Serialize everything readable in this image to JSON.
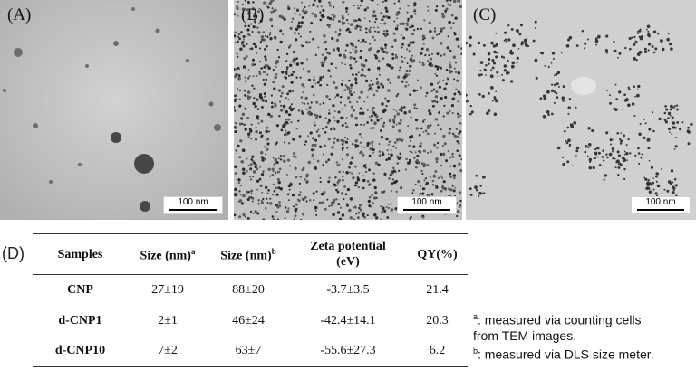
{
  "panels": [
    {
      "label": "(A)",
      "scale_bar": "100 nm"
    },
    {
      "label": "(B)",
      "scale_bar": "100 nm"
    },
    {
      "label": "(C)",
      "scale_bar": "100 nm"
    }
  ],
  "table_label": "(D)",
  "table": {
    "headers": [
      {
        "text": "Samples",
        "sup": ""
      },
      {
        "text": "Size (nm)",
        "sup": "a"
      },
      {
        "text": "Size (nm)",
        "sup": "b"
      },
      {
        "text": "Zeta potential",
        "line2": "(eV)",
        "sup": ""
      },
      {
        "text": "QY(%)",
        "sup": ""
      }
    ],
    "rows": [
      [
        "CNP",
        "27±19",
        "88±20",
        "-3.7±3.5",
        "21.4"
      ],
      [
        "d-CNP1",
        "2±1",
        "46±24",
        "-42.4±14.1",
        "20.3"
      ],
      [
        "d-CNP10",
        "7±2",
        "63±7",
        "-55.6±27.3",
        "6.2"
      ]
    ]
  },
  "footnotes": [
    {
      "sup": "a",
      "line1": ": measured via counting cells",
      "line2": "from TEM images."
    },
    {
      "sup": "b",
      "line1": ": measured via DLS size meter.",
      "line2": ""
    }
  ]
}
